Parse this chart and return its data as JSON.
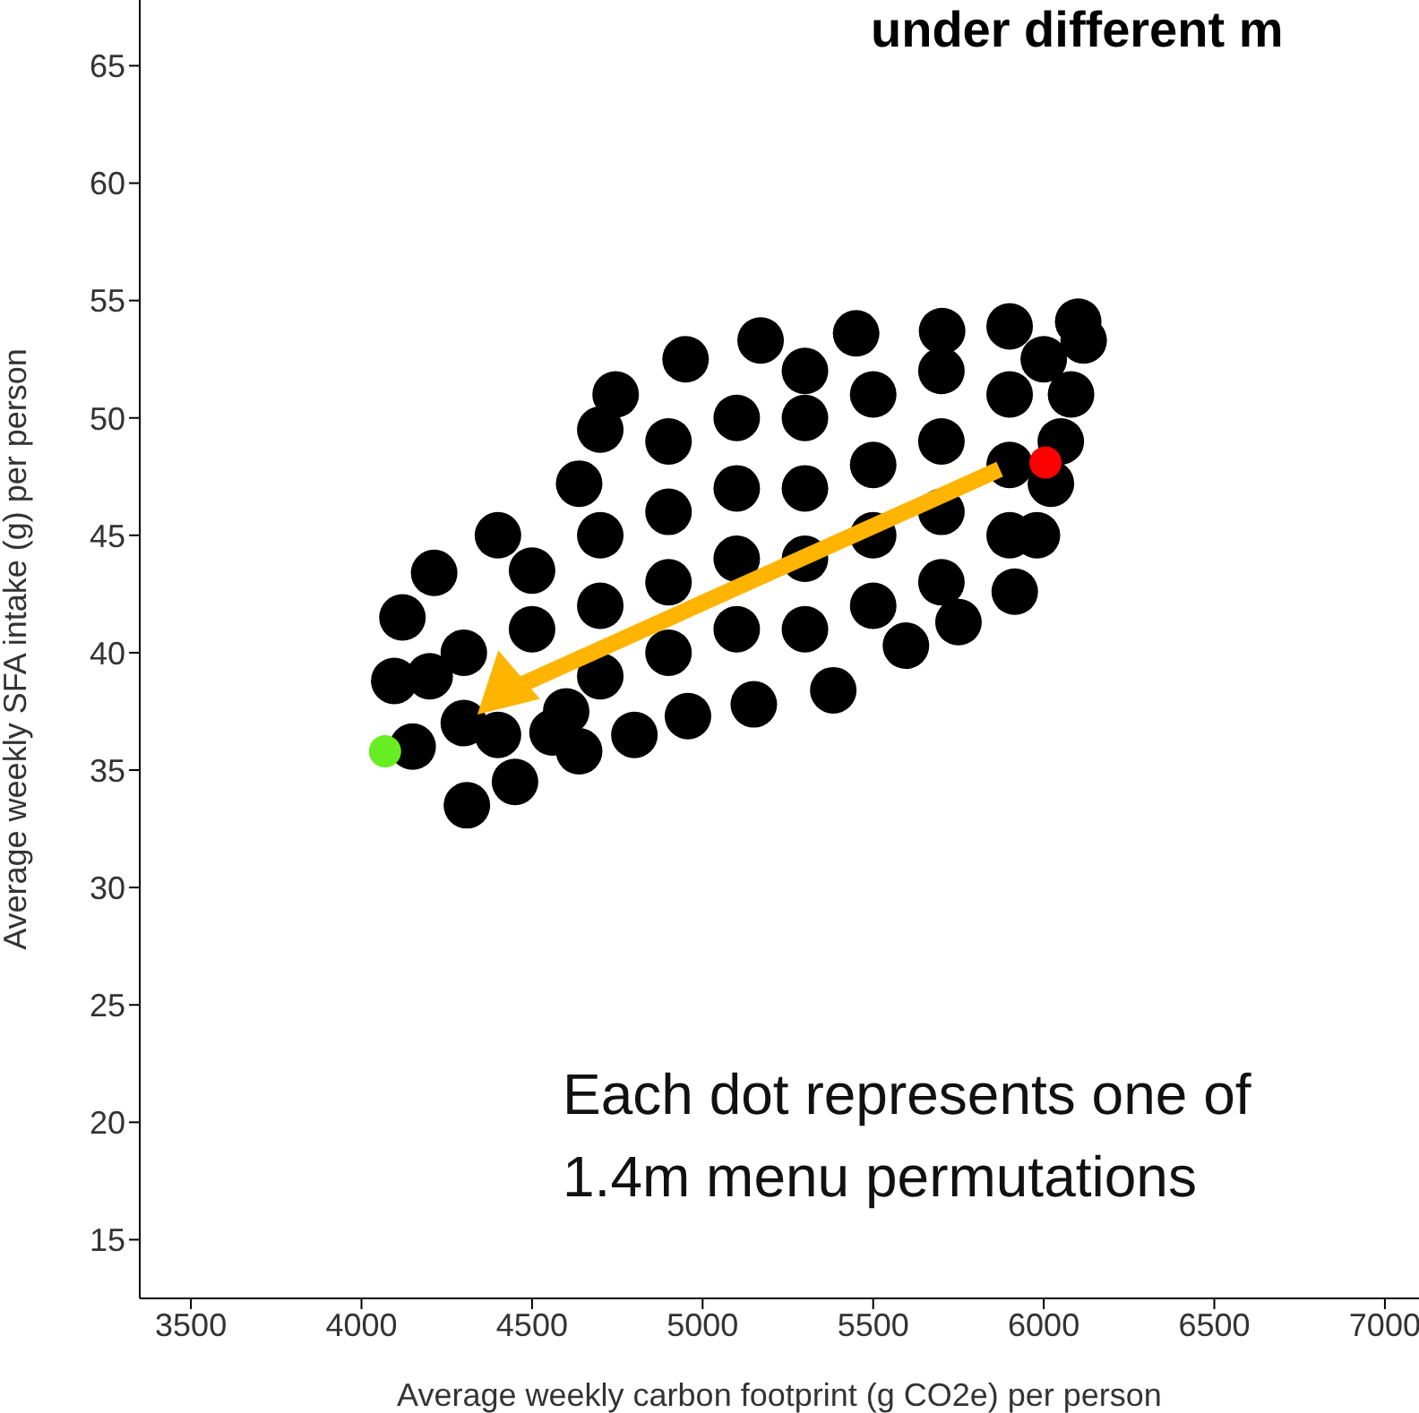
{
  "chart_data": {
    "type": "scatter",
    "title": "under different m",
    "xlabel": "Average weekly carbon footprint (g CO2e) per person",
    "ylabel": "Average weekly SFA intake (g) per person",
    "xlim": [
      3350,
      7100
    ],
    "xticks": [
      3500,
      4000,
      4500,
      5000,
      5500,
      6000,
      6500,
      7000
    ],
    "ylim": [
      12.5,
      67.8
    ],
    "yticks": [
      15,
      20,
      25,
      30,
      35,
      40,
      45,
      50,
      55,
      60,
      65
    ],
    "grid": false,
    "legend": false,
    "marker": "circle",
    "annotations": [
      "Each dot represents one of\n1.4m menu permutations"
    ],
    "series": [
      {
        "color": "#000000",
        "x": [
          4309,
          4150,
          4096,
          4120,
          4213,
          4400,
          4638,
          4700,
          4745,
          4950,
          5170,
          5450,
          5702,
          5900,
          6101,
          6117,
          6080,
          6050,
          6021,
          5980,
          5915,
          5750,
          5596,
          5383,
          5150,
          4957,
          4800,
          4638,
          4450,
          4300,
          4300,
          4560,
          4500,
          4500,
          4700,
          4700,
          4700,
          4900,
          4900,
          4900,
          4900,
          5100,
          5100,
          5100,
          5100,
          5300,
          5300,
          5300,
          5300,
          5300,
          5500,
          5500,
          5500,
          5500,
          5700,
          5700,
          5700,
          5700,
          5900,
          5900,
          5900,
          6000,
          4200,
          4400,
          4600
        ],
        "values": [
          33.5,
          36,
          38.8,
          41.5,
          43.4,
          45,
          47.2,
          49.5,
          51,
          52.5,
          53.3,
          53.6,
          53.7,
          53.9,
          54.1,
          53.3,
          51,
          49,
          47.2,
          45,
          42.6,
          41.3,
          40.3,
          38.4,
          37.8,
          37.3,
          36.5,
          35.8,
          34.5,
          37,
          40,
          36.6,
          41,
          43.5,
          39,
          42,
          45,
          40,
          43,
          46,
          49,
          41,
          44,
          47,
          50,
          41,
          44,
          47,
          50,
          52,
          42,
          45,
          48,
          51,
          43,
          46,
          49,
          52,
          45,
          48,
          51,
          52.5,
          39,
          36.5,
          37.5
        ]
      },
      {
        "color": "#ff0000",
        "x": [
          6005
        ],
        "values": [
          48.1
        ]
      },
      {
        "color": "#66ee22",
        "x": [
          4069
        ],
        "values": [
          35.8
        ]
      }
    ]
  }
}
